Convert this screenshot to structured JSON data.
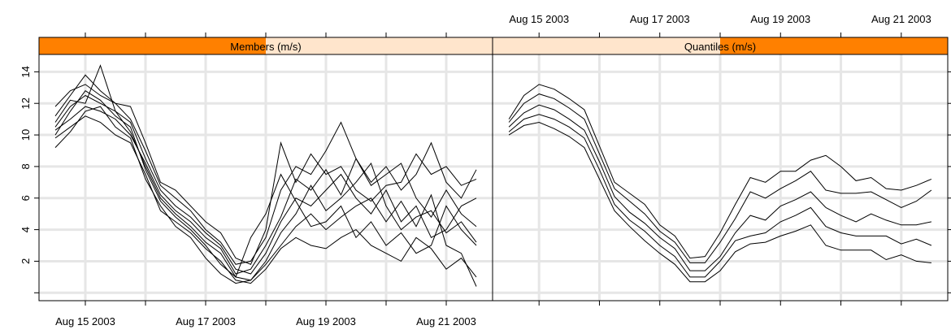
{
  "chart_data": [
    {
      "type": "line",
      "title": "Members (m/s)",
      "color": "#000000",
      "strip_color": "#ff8000",
      "strip_bg": "#ffe5cc",
      "xaxis_side": "bottom",
      "ylabels": true,
      "grid": true,
      "x": [
        14.5,
        14.75,
        15,
        15.25,
        15.5,
        15.75,
        16,
        16.25,
        16.5,
        16.75,
        17,
        17.25,
        17.5,
        17.75,
        18,
        18.25,
        18.5,
        18.75,
        19,
        19.25,
        19.5,
        19.75,
        20,
        20.25,
        20.5,
        20.75,
        21,
        21.25,
        21.5
      ],
      "xlim": [
        14.23,
        21.77
      ],
      "xticks": [
        {
          "value": 15,
          "label": "Aug 15 2003"
        },
        {
          "value": 17,
          "label": "Aug 17 2003"
        },
        {
          "value": 19,
          "label": "Aug 19 2003"
        },
        {
          "value": 21,
          "label": "Aug 21 2003"
        }
      ],
      "xminor": [
        16,
        18,
        20
      ],
      "ylim": [
        -0.5,
        15.1
      ],
      "yticks": [
        2,
        4,
        6,
        8,
        10,
        12,
        14
      ],
      "yminor": [
        0
      ],
      "series": [
        {
          "values": [
            10.5,
            11.8,
            12.5,
            12.0,
            11.5,
            10.8,
            8.5,
            6.5,
            5.5,
            4.8,
            3.8,
            3.0,
            1.5,
            1.2,
            2.5,
            4.5,
            6.0,
            5.5,
            6.5,
            7.5,
            6.0,
            5.0,
            6.5,
            4.5,
            5.5,
            3.5,
            4.0,
            5.5,
            6.0
          ]
        },
        {
          "values": [
            11.2,
            12.5,
            13.8,
            12.8,
            12.0,
            11.0,
            9.0,
            6.8,
            6.0,
            5.2,
            4.0,
            3.2,
            1.8,
            2.0,
            3.5,
            6.5,
            8.0,
            7.5,
            9.0,
            10.8,
            8.5,
            7.0,
            8.0,
            6.5,
            7.5,
            9.5,
            7.0,
            6.0,
            7.8
          ]
        },
        {
          "values": [
            9.8,
            10.5,
            11.2,
            10.8,
            10.0,
            9.5,
            7.5,
            5.2,
            4.5,
            3.8,
            2.8,
            2.0,
            0.8,
            0.6,
            1.5,
            2.8,
            3.5,
            3.0,
            2.8,
            3.5,
            4.0,
            3.0,
            2.5,
            2.0,
            3.5,
            2.8,
            1.5,
            2.2,
            1.0
          ]
        },
        {
          "values": [
            10.8,
            12.2,
            12.0,
            14.4,
            11.5,
            10.2,
            8.0,
            6.0,
            5.0,
            4.2,
            3.2,
            2.5,
            1.0,
            0.8,
            2.0,
            3.8,
            5.0,
            6.8,
            5.2,
            6.0,
            7.0,
            8.2,
            5.5,
            4.0,
            4.8,
            5.2,
            3.8,
            4.5,
            3.2
          ]
        },
        {
          "values": [
            10.3,
            11.0,
            11.8,
            11.5,
            11.0,
            10.0,
            8.2,
            6.2,
            5.2,
            4.5,
            3.5,
            2.8,
            1.2,
            1.5,
            3.0,
            4.8,
            7.2,
            6.5,
            7.8,
            6.2,
            8.5,
            6.8,
            7.5,
            8.2,
            6.0,
            4.8,
            6.5,
            5.0,
            4.2
          ]
        },
        {
          "values": [
            10.0,
            11.5,
            12.8,
            12.2,
            11.2,
            10.5,
            7.8,
            5.8,
            4.8,
            4.0,
            3.0,
            1.8,
            1.0,
            3.5,
            5.0,
            7.5,
            5.8,
            4.2,
            4.5,
            5.5,
            3.5,
            4.5,
            3.0,
            3.8,
            2.5,
            3.0,
            5.5,
            4.0,
            3.0
          ]
        },
        {
          "values": [
            9.2,
            10.2,
            11.5,
            11.8,
            10.5,
            9.8,
            7.2,
            5.5,
            4.2,
            3.5,
            2.2,
            1.2,
            0.6,
            0.8,
            1.8,
            3.0,
            4.2,
            5.0,
            4.0,
            4.8,
            5.5,
            6.0,
            4.5,
            5.8,
            4.2,
            6.2,
            3.0,
            2.5,
            0.4
          ]
        },
        {
          "values": [
            11.8,
            12.8,
            13.2,
            12.5,
            12.0,
            11.8,
            9.5,
            7.0,
            6.5,
            5.5,
            4.5,
            3.8,
            2.2,
            1.8,
            4.0,
            9.5,
            7.0,
            8.8,
            7.5,
            8.0,
            6.5,
            5.8,
            6.8,
            7.0,
            8.8,
            7.5,
            8.0,
            6.8,
            7.2
          ]
        }
      ]
    },
    {
      "type": "line",
      "title": "Quantiles (m/s)",
      "color": "#000000",
      "strip_color": "#ff8000",
      "strip_bg": "#ffe5cc",
      "xaxis_side": "top",
      "ylabels": false,
      "grid": true,
      "x": [
        14.5,
        14.75,
        15,
        15.25,
        15.5,
        15.75,
        16,
        16.25,
        16.5,
        16.75,
        17,
        17.25,
        17.5,
        17.75,
        18,
        18.25,
        18.5,
        18.75,
        19,
        19.25,
        19.5,
        19.75,
        20,
        20.25,
        20.5,
        20.75,
        21,
        21.25,
        21.5
      ],
      "xlim": [
        14.23,
        21.77
      ],
      "xticks": [
        {
          "value": 15,
          "label": "Aug 15 2003"
        },
        {
          "value": 17,
          "label": "Aug 17 2003"
        },
        {
          "value": 19,
          "label": "Aug 19 2003"
        },
        {
          "value": 21,
          "label": "Aug 21 2003"
        }
      ],
      "xminor": [
        16,
        18,
        20
      ],
      "ylim": [
        -0.5,
        15.1
      ],
      "yticks": [
        2,
        4,
        6,
        8,
        10,
        12,
        14
      ],
      "yminor": [
        0
      ],
      "series": [
        {
          "values": [
            11.0,
            12.5,
            13.2,
            12.9,
            12.3,
            11.6,
            9.3,
            7.0,
            6.3,
            5.6,
            4.3,
            3.6,
            2.2,
            2.3,
            3.8,
            5.6,
            7.3,
            7.0,
            7.7,
            7.7,
            8.4,
            8.7,
            8.0,
            7.1,
            7.3,
            6.6,
            6.5,
            6.8,
            7.2
          ]
        },
        {
          "values": [
            10.8,
            12.0,
            12.6,
            12.3,
            11.7,
            11.0,
            8.8,
            6.6,
            5.8,
            5.0,
            3.9,
            3.2,
            1.9,
            1.9,
            3.2,
            4.7,
            6.4,
            6.0,
            6.6,
            7.1,
            7.7,
            6.5,
            6.3,
            6.3,
            6.4,
            5.9,
            5.4,
            5.8,
            6.5
          ]
        },
        {
          "values": [
            10.5,
            11.4,
            11.9,
            11.6,
            11.0,
            10.3,
            8.3,
            6.1,
            5.1,
            4.4,
            3.5,
            2.8,
            1.4,
            1.4,
            2.3,
            3.8,
            4.9,
            4.6,
            5.5,
            5.9,
            6.4,
            5.4,
            4.9,
            4.5,
            5.0,
            4.6,
            4.3,
            4.3,
            4.5
          ]
        },
        {
          "values": [
            10.2,
            11.0,
            11.3,
            11.0,
            10.5,
            9.8,
            7.8,
            5.6,
            4.6,
            3.9,
            3.0,
            2.3,
            1.0,
            1.0,
            2.0,
            3.3,
            3.6,
            3.8,
            4.5,
            4.9,
            5.4,
            4.2,
            3.8,
            3.6,
            3.6,
            3.6,
            3.1,
            3.4,
            3.0
          ]
        },
        {
          "values": [
            10.0,
            10.6,
            10.8,
            10.4,
            9.9,
            9.2,
            7.2,
            5.2,
            4.2,
            3.3,
            2.5,
            1.8,
            0.7,
            0.7,
            1.4,
            2.6,
            3.1,
            3.2,
            3.6,
            3.9,
            4.3,
            3.0,
            2.7,
            2.7,
            2.7,
            2.1,
            2.4,
            2.0,
            1.9
          ]
        }
      ]
    }
  ]
}
